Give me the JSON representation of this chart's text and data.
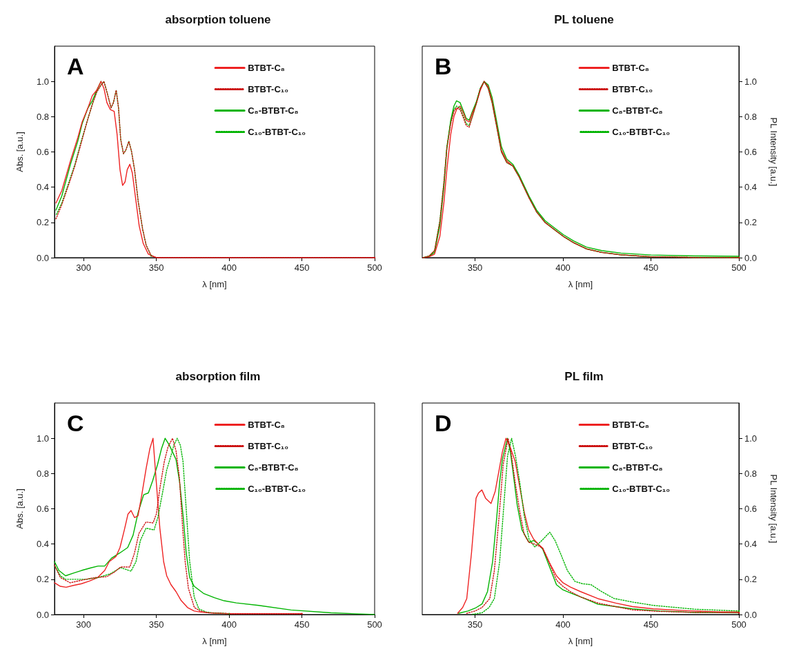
{
  "chart_data": [
    {
      "type": "line",
      "title": "absorption toluene",
      "xlabel": "λ [nm]",
      "ylabel": "Abs. [a.u.]",
      "annotations": [
        "A"
      ],
      "legend": "top right",
      "marker": "none",
      "xlim": [
        280,
        500
      ],
      "xticks": [
        300,
        350,
        400,
        450,
        500
      ],
      "ylim": [
        0,
        1.2
      ],
      "yticks": [
        {
          "value": 0,
          "label": "0.0"
        },
        {
          "value": 0.2,
          "label": "0.2"
        },
        {
          "value": 0.4,
          "label": "0.4"
        },
        {
          "value": 0.6,
          "label": "0.6"
        },
        {
          "value": 0.8,
          "label": "0.8"
        },
        {
          "value": 1,
          "label": "1.0"
        }
      ],
      "series": [
        {
          "name": "BTBT-C₈",
          "color": "#ee2222",
          "line_style": "solid",
          "x": [
            281,
            285,
            291,
            296,
            299,
            303,
            306,
            309,
            312,
            314,
            316,
            318.4,
            321,
            323,
            325,
            326.8,
            328.5,
            330,
            331.8,
            333.5,
            336,
            338.2,
            341,
            344.5,
            350,
            400,
            450,
            500
          ],
          "values": [
            0.31,
            0.38,
            0.55,
            0.68,
            0.77,
            0.85,
            0.92,
            0.95,
            1.0,
            0.96,
            0.88,
            0.84,
            0.83,
            0.7,
            0.5,
            0.41,
            0.43,
            0.5,
            0.53,
            0.48,
            0.32,
            0.18,
            0.08,
            0.02,
            0,
            0,
            0,
            0
          ]
        },
        {
          "name": "BTBT-C₁₀",
          "color": "#cc1111",
          "line_style": "dotted",
          "x": [
            281,
            285,
            290,
            294,
            298,
            303,
            306,
            309,
            312,
            314,
            316,
            318.9,
            320.5,
            322.4,
            324,
            325.5,
            327.4,
            329,
            331.1,
            333,
            335,
            337.5,
            340.6,
            343,
            346.5,
            350,
            400,
            450,
            500
          ],
          "values": [
            0.22,
            0.3,
            0.42,
            0.52,
            0.64,
            0.79,
            0.87,
            0.94,
            0.98,
            1.0,
            0.94,
            0.85,
            0.88,
            0.95,
            0.85,
            0.67,
            0.59,
            0.61,
            0.66,
            0.6,
            0.5,
            0.32,
            0.16,
            0.07,
            0.01,
            0,
            0,
            0,
            0
          ]
        },
        {
          "name": "C₈-BTBT-C₈",
          "color": "#00b400",
          "line_style": "solid",
          "x": [
            281,
            285,
            291,
            296,
            299,
            303,
            306,
            309,
            312
          ],
          "values": [
            0.27,
            0.35,
            0.53,
            0.66,
            0.76,
            0.85,
            0.89,
            0.95,
            1.0
          ]
        },
        {
          "name": "C₁₀-BTBT-C₁₀",
          "color": "#00b400",
          "line_style": "dotted",
          "x": [
            281,
            285,
            290,
            294,
            298,
            303,
            306,
            309,
            312,
            314,
            316,
            318.9,
            320.5,
            322.4,
            324,
            325.5,
            327.4,
            329,
            331.1,
            333,
            335,
            337.5,
            340.6,
            343,
            346.5
          ],
          "values": [
            0.24,
            0.31,
            0.43,
            0.53,
            0.65,
            0.79,
            0.87,
            0.94,
            0.98,
            1.0,
            0.94,
            0.85,
            0.88,
            0.95,
            0.85,
            0.67,
            0.59,
            0.61,
            0.66,
            0.6,
            0.5,
            0.32,
            0.16,
            0.07,
            0.01
          ]
        }
      ]
    },
    {
      "type": "line",
      "title": "PL toluene",
      "xlabel": "λ [nm]",
      "y2label": "PL Intensity [a.u.]",
      "annotations": [
        "B"
      ],
      "legend": "top right",
      "marker": "none",
      "xlim": [
        320,
        500
      ],
      "xticks": [
        350,
        400,
        450,
        500
      ],
      "y2lim": [
        0,
        1.2
      ],
      "y2ticks": [
        {
          "value": 0,
          "label": "0.0"
        },
        {
          "value": 0.2,
          "label": "0.2"
        },
        {
          "value": 0.4,
          "label": "0.4"
        },
        {
          "value": 0.6,
          "label": "0.6"
        },
        {
          "value": 0.8,
          "label": "0.8"
        },
        {
          "value": 1,
          "label": "1.0"
        }
      ],
      "series": [
        {
          "name": "BTBT-C₈",
          "color": "#ee2222",
          "line_style": "solid",
          "axis": "y2",
          "x": [
            320.5,
            324,
            327,
            330,
            332.3,
            334,
            336.2,
            338,
            339.5,
            341.5,
            343.5,
            345,
            346.7,
            348.5,
            350.6,
            353,
            355.2,
            357.5,
            359.7,
            362,
            365,
            368,
            371.5,
            375,
            380.7,
            385,
            389.8,
            395,
            400.3,
            406,
            413.3,
            422,
            432.9,
            450,
            475,
            500
          ],
          "values": [
            0,
            0.005,
            0.02,
            0.12,
            0.31,
            0.5,
            0.7,
            0.8,
            0.84,
            0.86,
            0.82,
            0.78,
            0.77,
            0.82,
            0.87,
            0.95,
            1.0,
            0.97,
            0.89,
            0.77,
            0.61,
            0.55,
            0.52,
            0.46,
            0.34,
            0.26,
            0.2,
            0.16,
            0.12,
            0.085,
            0.05,
            0.03,
            0.016,
            0.005,
            0.001,
            0
          ]
        },
        {
          "name": "BTBT-C₁₀",
          "color": "#cc1111",
          "line_style": "dotted",
          "axis": "y2",
          "x": [
            320.5,
            324,
            327,
            330,
            332.3,
            334,
            336.2,
            338,
            339.5,
            341.5,
            343.5,
            345,
            346.7,
            348.5,
            350.6,
            353,
            355.2,
            357.5,
            359.7,
            362,
            365,
            368,
            371.5,
            375,
            380.7,
            385,
            389.8,
            395,
            400.3,
            406,
            413.3,
            422,
            432.9,
            450,
            475,
            500
          ],
          "values": [
            0,
            0.01,
            0.04,
            0.2,
            0.42,
            0.62,
            0.76,
            0.83,
            0.85,
            0.84,
            0.79,
            0.75,
            0.74,
            0.8,
            0.87,
            0.96,
            1.0,
            0.96,
            0.88,
            0.76,
            0.6,
            0.54,
            0.52,
            0.46,
            0.34,
            0.26,
            0.2,
            0.16,
            0.12,
            0.085,
            0.05,
            0.03,
            0.016,
            0.005,
            0.001,
            0
          ]
        },
        {
          "name": "C₈-BTBT-C₈",
          "color": "#00b400",
          "line_style": "solid",
          "axis": "y2",
          "x": [
            320.5,
            324,
            327,
            330,
            332.3,
            334,
            336.2,
            338,
            339.5,
            341.5,
            343.5,
            345,
            346.7,
            348.5,
            350.6,
            353,
            355.2,
            357.5,
            359.7,
            362,
            365,
            368,
            371.5,
            375,
            380.7,
            385,
            389.8,
            395,
            400.3,
            406,
            413.3,
            422,
            432.9,
            450,
            475,
            500
          ],
          "values": [
            0,
            0.008,
            0.03,
            0.18,
            0.4,
            0.62,
            0.78,
            0.86,
            0.89,
            0.88,
            0.83,
            0.79,
            0.78,
            0.83,
            0.88,
            0.96,
            1.0,
            0.98,
            0.91,
            0.79,
            0.63,
            0.56,
            0.53,
            0.47,
            0.35,
            0.27,
            0.21,
            0.17,
            0.13,
            0.095,
            0.06,
            0.04,
            0.026,
            0.015,
            0.01,
            0.008
          ]
        },
        {
          "name": "C₁₀-BTBT-C₁₀",
          "color": "#00b400",
          "line_style": "dotted",
          "axis": "y2",
          "x": [
            320.5,
            324,
            327,
            330,
            332.3,
            334,
            336.2,
            338,
            339.5,
            341.5,
            343.5,
            345,
            346.7,
            348.5,
            350.6,
            353,
            355.2,
            357.5,
            359.7,
            362,
            365,
            368,
            371.5,
            375,
            380.7,
            385,
            389.8,
            395,
            400.3,
            406,
            413.3,
            422,
            432.9,
            450,
            475,
            500
          ],
          "values": [
            0,
            0.01,
            0.04,
            0.21,
            0.43,
            0.63,
            0.77,
            0.84,
            0.86,
            0.85,
            0.8,
            0.76,
            0.75,
            0.8,
            0.87,
            0.96,
            1.0,
            0.96,
            0.88,
            0.76,
            0.6,
            0.54,
            0.52,
            0.46,
            0.34,
            0.26,
            0.2,
            0.16,
            0.12,
            0.085,
            0.05,
            0.03,
            0.016,
            0.005,
            0.001,
            0
          ]
        }
      ]
    },
    {
      "type": "line",
      "title": "absorption film",
      "xlabel": "λ [nm]",
      "ylabel": "Abs. [a.u.]",
      "annotations": [
        "C"
      ],
      "legend": "top right",
      "marker": "none",
      "xlim": [
        280,
        500
      ],
      "xticks": [
        300,
        350,
        400,
        450,
        500
      ],
      "ylim": [
        0,
        1.2
      ],
      "yticks": [
        {
          "value": 0,
          "label": "0.0"
        },
        {
          "value": 0.2,
          "label": "0.2"
        },
        {
          "value": 0.4,
          "label": "0.4"
        },
        {
          "value": 0.6,
          "label": "0.6"
        },
        {
          "value": 0.8,
          "label": "0.8"
        },
        {
          "value": 1,
          "label": "1.0"
        }
      ],
      "series": [
        {
          "name": "BTBT-C₈",
          "color": "#ee2222",
          "line_style": "solid",
          "x": [
            280,
            284,
            288,
            293,
            298.6,
            304,
            309.7,
            314.5,
            317.6,
            322.3,
            325,
            328,
            330.5,
            332.6,
            335,
            337.4,
            340,
            343,
            345.5,
            347.7,
            349.5,
            352.4,
            355,
            357.1,
            360,
            363.5,
            367,
            371.4,
            376,
            380.9,
            390,
            400,
            425,
            450
          ],
          "values": [
            0.18,
            0.16,
            0.155,
            0.165,
            0.175,
            0.19,
            0.21,
            0.25,
            0.3,
            0.33,
            0.38,
            0.48,
            0.57,
            0.59,
            0.55,
            0.56,
            0.68,
            0.83,
            0.94,
            1.0,
            0.8,
            0.49,
            0.3,
            0.22,
            0.17,
            0.13,
            0.08,
            0.04,
            0.02,
            0.013,
            0.008,
            0.005,
            0.005,
            0.005
          ]
        },
        {
          "name": "BTBT-C₁₀",
          "color": "#cc1111",
          "line_style": "dotted",
          "x": [
            280,
            284,
            290.8,
            296,
            301.8,
            308,
            316,
            321,
            325.5,
            331.8,
            335,
            338,
            342.9,
            347.7,
            350,
            352.5,
            355.5,
            358,
            361.1,
            363.5,
            365.8,
            368,
            369.8,
            372,
            376.1,
            380,
            385.6,
            400,
            450
          ],
          "values": [
            0.28,
            0.21,
            0.18,
            0.19,
            0.2,
            0.21,
            0.215,
            0.24,
            0.27,
            0.27,
            0.35,
            0.46,
            0.525,
            0.52,
            0.57,
            0.72,
            0.87,
            0.95,
            1.0,
            0.93,
            0.78,
            0.5,
            0.3,
            0.15,
            0.04,
            0.02,
            0.01,
            0.005,
            0.005
          ]
        },
        {
          "name": "C₈-BTBT-C₈",
          "color": "#00b400",
          "line_style": "solid",
          "x": [
            280,
            283,
            287.6,
            293,
            298.6,
            305,
            310,
            314.5,
            319.2,
            325,
            330.3,
            334,
            337.5,
            341.3,
            344.5,
            347.5,
            350.8,
            353.5,
            356,
            359,
            363.5,
            366,
            368.5,
            370.5,
            372.9,
            376,
            382.4,
            390,
            396.6,
            405,
            420.3,
            442.4,
            470,
            500
          ],
          "values": [
            0.3,
            0.25,
            0.22,
            0.235,
            0.25,
            0.265,
            0.275,
            0.275,
            0.32,
            0.35,
            0.38,
            0.45,
            0.58,
            0.68,
            0.69,
            0.76,
            0.85,
            0.94,
            1.0,
            0.96,
            0.88,
            0.75,
            0.55,
            0.35,
            0.21,
            0.16,
            0.12,
            0.095,
            0.078,
            0.066,
            0.052,
            0.026,
            0.01,
            0
          ]
        },
        {
          "name": "C₁₀-BTBT-C₁₀",
          "color": "#00b400",
          "line_style": "dotted",
          "x": [
            280,
            284,
            287.6,
            295,
            301.8,
            310,
            318,
            325.5,
            332.6,
            336,
            339,
            342.9,
            348.4,
            351,
            354,
            357.1,
            360,
            362,
            364.3,
            366.5,
            368.3,
            370.5,
            372.9,
            376,
            379.2,
            384,
            388,
            400
          ],
          "values": [
            0.28,
            0.22,
            0.2,
            0.2,
            0.2,
            0.21,
            0.23,
            0.266,
            0.246,
            0.3,
            0.42,
            0.49,
            0.48,
            0.55,
            0.68,
            0.82,
            0.9,
            0.96,
            1.0,
            0.96,
            0.87,
            0.6,
            0.3,
            0.1,
            0.032,
            0.015,
            0.01,
            0.005
          ]
        }
      ]
    },
    {
      "type": "line",
      "title": "PL film",
      "xlabel": "λ [nm]",
      "y2label": "PL Intensity [a.u.]",
      "annotations": [
        "D"
      ],
      "legend": "top right",
      "marker": "none",
      "xlim": [
        320,
        500
      ],
      "xticks": [
        350,
        400,
        450,
        500
      ],
      "y2lim": [
        0,
        1.2
      ],
      "y2ticks": [
        {
          "value": 0,
          "label": "0.0"
        },
        {
          "value": 0.2,
          "label": "0.2"
        },
        {
          "value": 0.4,
          "label": "0.4"
        },
        {
          "value": 0.6,
          "label": "0.6"
        },
        {
          "value": 0.8,
          "label": "0.8"
        },
        {
          "value": 1,
          "label": "1.0"
        }
      ],
      "series": [
        {
          "name": "BTBT-C₈",
          "color": "#ee2222",
          "line_style": "solid",
          "axis": "y2",
          "x": [
            340.1,
            343,
            345.3,
            348,
            350.6,
            352,
            353.9,
            356,
            359.1,
            361.5,
            363.7,
            365.5,
            367.6,
            370,
            372.8,
            375.5,
            378,
            380.5,
            383.3,
            386,
            388.5,
            392,
            396.3,
            400,
            404.2,
            410,
            419.9,
            430,
            439.5,
            451.3,
            470,
            490,
            500
          ],
          "values": [
            0.007,
            0.04,
            0.09,
            0.35,
            0.66,
            0.69,
            0.707,
            0.66,
            0.63,
            0.7,
            0.82,
            0.92,
            1.0,
            0.95,
            0.87,
            0.72,
            0.58,
            0.48,
            0.428,
            0.4,
            0.376,
            0.3,
            0.22,
            0.18,
            0.156,
            0.13,
            0.09,
            0.065,
            0.045,
            0.032,
            0.022,
            0.015,
            0.015
          ]
        },
        {
          "name": "BTBT-C₁₀",
          "color": "#cc1111",
          "line_style": "dotted",
          "axis": "y2",
          "x": [
            345.3,
            350,
            354,
            358.4,
            361,
            363.7,
            366,
            368.8,
            370.5,
            372.8,
            375.5,
            378,
            380.5,
            383.3,
            386,
            388.5,
            392,
            396.3,
            400,
            404.2,
            410,
            419.9,
            430,
            439.5,
            455,
            475,
            500
          ],
          "values": [
            0.007,
            0.02,
            0.04,
            0.091,
            0.25,
            0.558,
            0.85,
            1.0,
            0.92,
            0.752,
            0.58,
            0.454,
            0.41,
            0.402,
            0.39,
            0.376,
            0.3,
            0.195,
            0.16,
            0.13,
            0.1,
            0.065,
            0.045,
            0.026,
            0.018,
            0.012,
            0.01
          ]
        },
        {
          "name": "C₈-BTBT-C₈",
          "color": "#00b400",
          "line_style": "solid",
          "axis": "y2",
          "x": [
            340.6,
            346,
            350.6,
            354,
            357.1,
            360,
            362.4,
            364,
            365.6,
            368.4,
            370,
            371.5,
            374,
            376.7,
            380.7,
            383.3,
            386,
            388.5,
            392,
            396.3,
            400,
            404.2,
            410,
            419.9,
            430,
            439.5,
            455,
            475,
            500
          ],
          "values": [
            0.007,
            0.02,
            0.039,
            0.06,
            0.13,
            0.3,
            0.558,
            0.75,
            0.882,
            1.0,
            0.93,
            0.817,
            0.62,
            0.48,
            0.41,
            0.42,
            0.4,
            0.37,
            0.28,
            0.169,
            0.14,
            0.123,
            0.1,
            0.058,
            0.045,
            0.032,
            0.02,
            0.012,
            0.01
          ]
        },
        {
          "name": "C₁₀-BTBT-C₁₀",
          "color": "#00b400",
          "line_style": "dotted",
          "axis": "y2",
          "x": [
            347.9,
            354,
            358,
            361,
            364,
            366.9,
            368.5,
            370.8,
            373,
            375.4,
            378,
            380.7,
            384,
            388,
            392.5,
            395.5,
            399,
            402.5,
            406.8,
            411,
            416,
            422,
            429,
            440,
            451.3,
            475,
            500
          ],
          "values": [
            0,
            0.01,
            0.04,
            0.091,
            0.3,
            0.688,
            0.9,
            1.0,
            0.9,
            0.752,
            0.56,
            0.428,
            0.383,
            0.42,
            0.467,
            0.42,
            0.337,
            0.25,
            0.188,
            0.175,
            0.169,
            0.13,
            0.091,
            0.07,
            0.052,
            0.03,
            0.02
          ]
        }
      ]
    }
  ]
}
